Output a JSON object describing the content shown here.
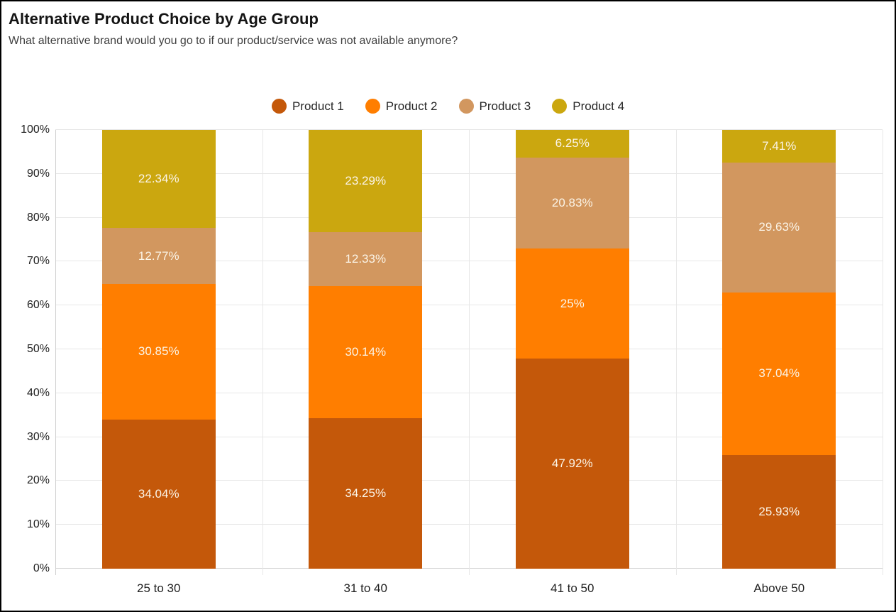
{
  "header": {
    "title": "Alternative Product Choice by Age Group",
    "subtitle": "What alternative brand would you go to if our product/service was not available anymore?"
  },
  "chart_data": {
    "type": "bar",
    "stacked": true,
    "title": "Alternative Product Choice by Age Group",
    "subtitle": "What alternative brand would you go to if our product/service was not available anymore?",
    "categories": [
      "25 to 30",
      "31 to 40",
      "41 to 50",
      "Above 50"
    ],
    "series": [
      {
        "name": "Product 1",
        "color": "#c4580a",
        "values": [
          34.04,
          34.25,
          47.92,
          25.93
        ],
        "labels": [
          "34.04%",
          "34.25%",
          "47.92%",
          "25.93%"
        ]
      },
      {
        "name": "Product 2",
        "color": "#ff7e00",
        "values": [
          30.85,
          30.14,
          25,
          37.04
        ],
        "labels": [
          "30.85%",
          "30.14%",
          "25%",
          "37.04%"
        ]
      },
      {
        "name": "Product 3",
        "color": "#d2975f",
        "values": [
          12.77,
          12.33,
          20.83,
          29.63
        ],
        "labels": [
          "12.77%",
          "12.33%",
          "20.83%",
          "29.63%"
        ]
      },
      {
        "name": "Product 4",
        "color": "#cba70f",
        "values": [
          22.34,
          23.29,
          6.25,
          7.41
        ],
        "labels": [
          "22.34%",
          "23.29%",
          "6.25%",
          "7.41%"
        ]
      }
    ],
    "y_axis": {
      "min": 0,
      "max": 100,
      "step": 10,
      "tick_labels": [
        "0%",
        "10%",
        "20%",
        "30%",
        "40%",
        "50%",
        "60%",
        "70%",
        "80%",
        "90%",
        "100%"
      ]
    },
    "x_axis": {
      "tick_labels": [
        "25 to 30",
        "31 to 40",
        "41 to 50",
        "Above 50"
      ]
    },
    "legend_position": "top-center",
    "grid": true,
    "bar_value_label_color": "#fbf4e7"
  }
}
